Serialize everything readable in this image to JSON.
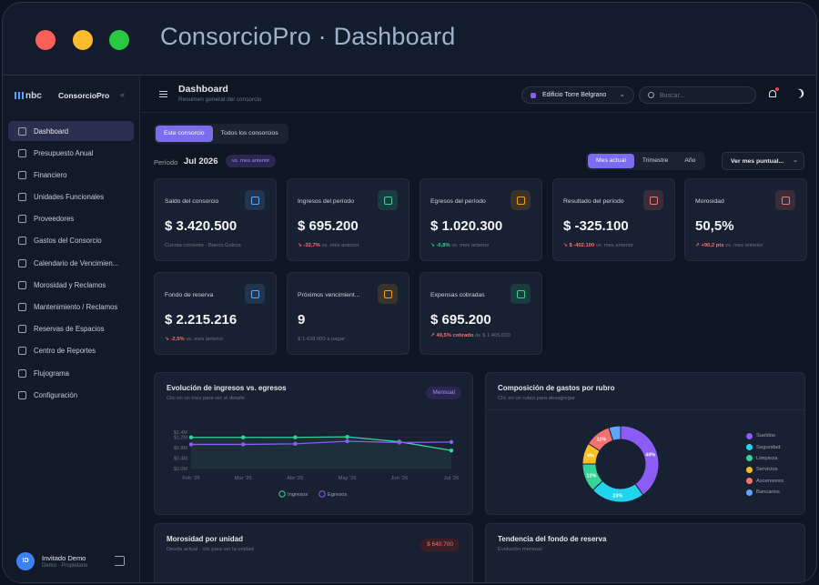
{
  "window": {
    "title": "ConsorcioPro · Dashboard"
  },
  "brand": {
    "logo": "nbc",
    "name": "ConsorcioPro",
    "collapse": "«"
  },
  "nav": [
    {
      "label": "Dashboard",
      "active": true
    },
    {
      "label": "Presupuesto Anual"
    },
    {
      "label": "Financiero"
    },
    {
      "label": "Unidades Funcionales"
    },
    {
      "label": "Proveedores"
    },
    {
      "label": "Gastos del Consorcio"
    },
    {
      "label": "Calendario de Vencimien..."
    },
    {
      "label": "Morosidad y Reclamos"
    },
    {
      "label": "Mantenimiento / Reclamos"
    },
    {
      "label": "Reservas de Espacios"
    },
    {
      "label": "Centro de Reportes"
    },
    {
      "label": "Flujograma"
    },
    {
      "label": "Configuración"
    }
  ],
  "user": {
    "initials": "ID",
    "name": "Invitado Demo",
    "role": "Demo · Propietario"
  },
  "topbar": {
    "title": "Dashboard",
    "subtitle": "Resumen general del consorcio",
    "building": "Edificio Torre Belgrano",
    "search_placeholder": "Buscar..."
  },
  "scope_tabs": [
    "Este consorcio",
    "Todos los consorcios"
  ],
  "period": {
    "label": "Período",
    "value": "Jul 2026",
    "chip": "vs. mes anterior"
  },
  "range_tabs": [
    "Mes actual",
    "Trimestre",
    "Año"
  ],
  "month_select": "Ver mes puntual...",
  "colors": {
    "accent": "#7c6cf0",
    "up": "#34d399",
    "down": "#f87171",
    "ingresos": "#34d399",
    "egresos": "#8b5cf6"
  },
  "kpis": [
    {
      "label": "Saldo del consorcio",
      "value": "$ 3.420.500",
      "note": "Cuenta corriente · Banco Galicia",
      "icon": "wallet-icon",
      "icon_color": "#60a5fa"
    },
    {
      "label": "Ingresos del período",
      "value": "$ 695.200",
      "delta": "↘ -32,7%",
      "delta_dir": "down",
      "note": "vs. mes anterior",
      "icon": "arrow-down-circle-icon",
      "icon_color": "#34d399"
    },
    {
      "label": "Egresos del período",
      "value": "$ 1.020.300",
      "delta": "↘ -0,8%",
      "delta_dir": "up",
      "note": "vs. mes anterior",
      "icon": "arrow-up-circle-icon",
      "icon_color": "#f59e0b"
    },
    {
      "label": "Resultado del período",
      "value": "$ -325.100",
      "delta": "↘ $ -402.100",
      "delta_dir": "down",
      "note": "vs. mes anterior",
      "icon": "trend-down-icon",
      "icon_color": "#f87171"
    },
    {
      "label": "Morosidad",
      "value": "50,5%",
      "delta": "↗ +90,2 pts",
      "delta_dir": "down",
      "note": "vs. mes anterior",
      "icon": "alert-circle-icon",
      "icon_color": "#f87171"
    },
    {
      "label": "Fondo de reserva",
      "value": "$ 2.215.216",
      "delta": "↘ -2,5%",
      "delta_dir": "down",
      "note": "vs. mes anterior",
      "icon": "piggy-bank-icon",
      "icon_color": "#60a5fa"
    },
    {
      "label": "Próximos vencimient...",
      "value": "9",
      "note": "$ 1.428.000 a pagar",
      "icon": "calendar-icon",
      "icon_color": "#f59e0b"
    },
    {
      "label": "Expensas cobradas",
      "value": "$ 695.200",
      "delta": "↗ 49,5% cobrado",
      "delta_dir": "down",
      "note": "de $ 1.405.000",
      "icon": "receipt-icon",
      "icon_color": "#34d399"
    }
  ],
  "line_panel": {
    "title": "Evolución de ingresos vs. egresos",
    "subtitle": "Clic en un mes para ver el detalle",
    "badge": "Mensual"
  },
  "donut_panel": {
    "title": "Composición de gastos por rubro",
    "subtitle": "Clic en un rubro para desagregar"
  },
  "moro_panel": {
    "title": "Morosidad por unidad",
    "subtitle": "Deuda actual · clic para ver la unidad",
    "badge": "$ 640.700"
  },
  "fondo_panel": {
    "title": "Tendencia del fondo de reserva",
    "subtitle": "Evolución mensual"
  },
  "chart_data": [
    {
      "type": "line",
      "title": "Evolución de ingresos vs. egresos",
      "x": [
        "Feb '26",
        "Mar '26",
        "Abr '26",
        "May '26",
        "Jun '26",
        "Jul '26"
      ],
      "series": [
        {
          "name": "Ingresos",
          "color": "#34d399",
          "values": [
            1.2,
            1.2,
            1.2,
            1.22,
            1.03,
            0.695
          ]
        },
        {
          "name": "Egresos",
          "color": "#8b5cf6",
          "values": [
            0.93,
            0.93,
            0.95,
            1.05,
            1.0,
            1.02
          ]
        }
      ],
      "y_ticks": [
        "$0.0M",
        "$0.4M",
        "$0.8M",
        "$1.2M",
        "$1.4M"
      ],
      "ylim": [
        0,
        1.4
      ],
      "grid": true,
      "legend": "bottom"
    },
    {
      "type": "pie",
      "title": "Composición de gastos por rubro",
      "slices": [
        {
          "name": "Sueldos",
          "value": 40,
          "label": "40%",
          "color": "#8b5cf6"
        },
        {
          "name": "Seguridad",
          "value": 23,
          "label": "23%",
          "color": "#22d3ee"
        },
        {
          "name": "Limpieza",
          "value": 12,
          "label": "12%",
          "color": "#34d399"
        },
        {
          "name": "Servicios",
          "value": 9,
          "label": "9%",
          "color": "#fbbf24"
        },
        {
          "name": "Ascensores",
          "value": 11,
          "label": "11%",
          "color": "#f87171"
        },
        {
          "name": "Bancarios",
          "value": 5,
          "label": "",
          "color": "#60a5fa"
        }
      ],
      "legend": "right"
    }
  ]
}
